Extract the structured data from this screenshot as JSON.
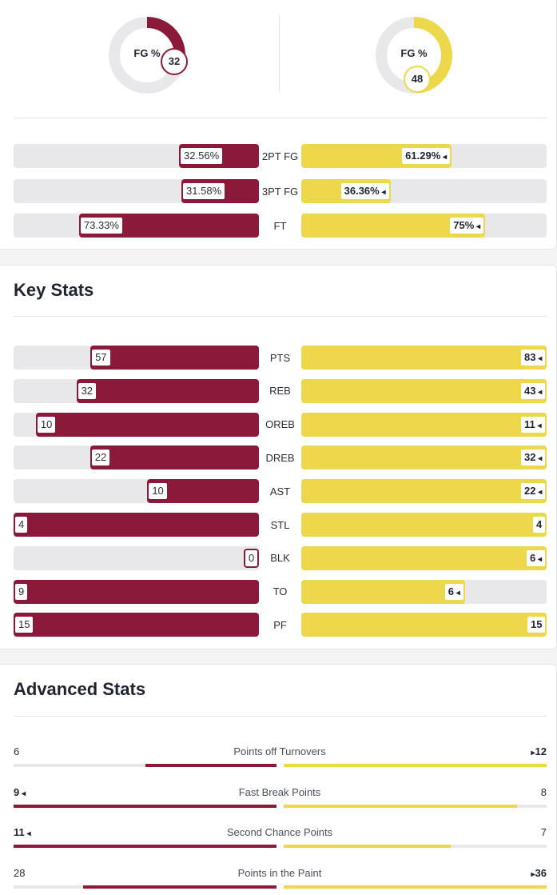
{
  "shooting": {
    "away": {
      "donut_label": "FG %",
      "fg_value": "32",
      "fg_pct": 0.32
    },
    "home": {
      "donut_label": "FG %",
      "fg_value": "48",
      "fg_pct": 0.48
    },
    "rows": [
      {
        "label": "2PT FG",
        "left": "32.56%",
        "right": "61.29%",
        "left_pct": 0.3256,
        "right_pct": 0.6129,
        "winner": "right"
      },
      {
        "label": "3PT FG",
        "left": "31.58%",
        "right": "36.36%",
        "left_pct": 0.3158,
        "right_pct": 0.3636,
        "winner": "right"
      },
      {
        "label": "FT",
        "left": "73.33%",
        "right": "75%",
        "left_pct": 0.7333,
        "right_pct": 0.75,
        "winner": "right"
      }
    ]
  },
  "key_stats": {
    "title": "Key Stats",
    "rows": [
      {
        "label": "PTS",
        "left": "57",
        "right": "83",
        "left_frac": 0.687,
        "right_frac": 1.0,
        "winner": "right"
      },
      {
        "label": "REB",
        "left": "32",
        "right": "43",
        "left_frac": 0.744,
        "right_frac": 1.0,
        "winner": "right"
      },
      {
        "label": "OREB",
        "left": "10",
        "right": "11",
        "left_frac": 0.909,
        "right_frac": 1.0,
        "winner": "right"
      },
      {
        "label": "DREB",
        "left": "22",
        "right": "32",
        "left_frac": 0.688,
        "right_frac": 1.0,
        "winner": "right"
      },
      {
        "label": "AST",
        "left": "10",
        "right": "22",
        "left_frac": 0.455,
        "right_frac": 1.0,
        "winner": "right"
      },
      {
        "label": "STL",
        "left": "4",
        "right": "4",
        "left_frac": 1.0,
        "right_frac": 1.0,
        "winner": "none"
      },
      {
        "label": "BLK",
        "left": "0",
        "right": "6",
        "left_frac": 0.0,
        "right_frac": 1.0,
        "winner": "right"
      },
      {
        "label": "TO",
        "left": "9",
        "right": "6",
        "left_frac": 1.0,
        "right_frac": 0.667,
        "winner": "right"
      },
      {
        "label": "PF",
        "left": "15",
        "right": "15",
        "left_frac": 1.0,
        "right_frac": 1.0,
        "winner": "none"
      }
    ]
  },
  "advanced_stats": {
    "title": "Advanced Stats",
    "rows": [
      {
        "label": "Points off Turnovers",
        "left": "6",
        "right": "12",
        "left_frac": 0.5,
        "right_frac": 1.0,
        "winner": "right"
      },
      {
        "label": "Fast Break Points",
        "left": "9",
        "right": "8",
        "left_frac": 1.0,
        "right_frac": 0.889,
        "winner": "left"
      },
      {
        "label": "Second Chance Points",
        "left": "11",
        "right": "7",
        "left_frac": 1.0,
        "right_frac": 0.636,
        "winner": "left"
      },
      {
        "label": "Points in the Paint",
        "left": "28",
        "right": "36",
        "left_frac": 0.737,
        "right_frac": 1.0,
        "winner": "right"
      }
    ]
  },
  "colors": {
    "away": "#8b1a3a",
    "home": "#ecd84a",
    "track": "#e8e8ea"
  }
}
